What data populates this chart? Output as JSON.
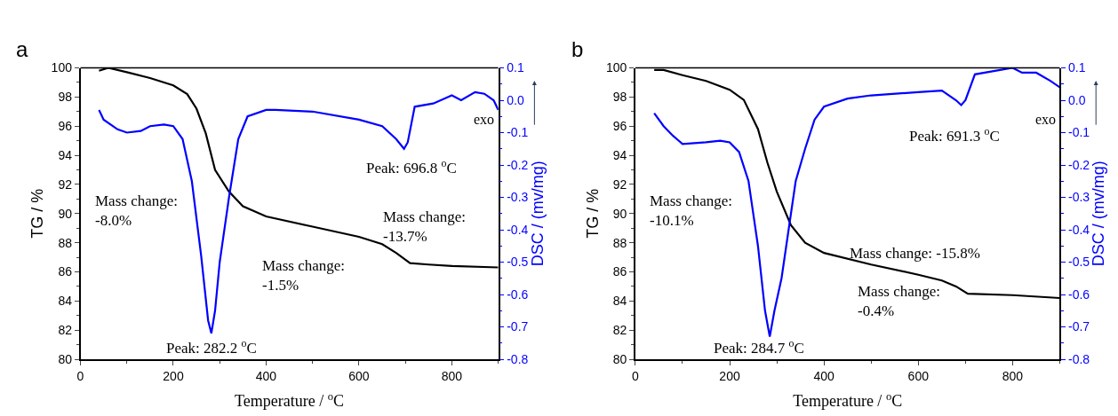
{
  "chart_data": [
    {
      "type": "line",
      "title": "a",
      "xlabel": "Temperature / $^{o}$C",
      "ylabel": "TG / %",
      "y2label": "DSC / (mv/mg)",
      "xlim": [
        0,
        900
      ],
      "xticks": [
        0,
        200,
        400,
        600,
        800
      ],
      "ylim": [
        80,
        100
      ],
      "yticks": [
        80,
        82,
        84,
        86,
        88,
        90,
        92,
        94,
        96,
        98,
        100
      ],
      "y2lim": [
        -0.8,
        0.1
      ],
      "y2ticks": [
        -0.8,
        -0.7,
        -0.6,
        -0.5,
        -0.4,
        -0.3,
        -0.2,
        -0.1,
        {
          "value": 0,
          "label": "0.0"
        },
        0.1
      ],
      "marker": "none",
      "line_style": "solid",
      "series": [
        {
          "color": "#000000",
          "x": [
            40,
            60,
            100,
            150,
            200,
            230,
            250,
            270,
            290,
            320,
            350,
            400,
            500,
            600,
            650,
            680,
            710,
            750,
            800,
            900
          ],
          "values": [
            99.8,
            100,
            99.7,
            99.3,
            98.8,
            98.2,
            97.2,
            95.5,
            93,
            91.5,
            90.5,
            89.8,
            89.1,
            88.4,
            87.9,
            87.3,
            86.6,
            86.5,
            86.4,
            86.3
          ]
        },
        {
          "color": "#0000ff",
          "axis": "y2",
          "x": [
            40,
            50,
            80,
            100,
            130,
            150,
            180,
            200,
            220,
            240,
            260,
            275,
            282,
            290,
            300,
            320,
            340,
            360,
            400,
            420,
            500,
            600,
            650,
            680,
            697,
            705,
            720,
            760,
            800,
            820,
            850,
            870,
            890,
            900
          ],
          "values": [
            -0.03,
            -0.06,
            -0.09,
            -0.1,
            -0.095,
            -0.08,
            -0.075,
            -0.08,
            -0.12,
            -0.25,
            -0.48,
            -0.68,
            -0.72,
            -0.65,
            -0.5,
            -0.3,
            -0.12,
            -0.05,
            -0.03,
            -0.03,
            -0.035,
            -0.06,
            -0.08,
            -0.12,
            -0.15,
            -0.13,
            -0.02,
            -0.01,
            0.015,
            0.0,
            0.025,
            0.02,
            0.0,
            -0.03
          ]
        }
      ],
      "annotations": [
        "Peak: 282.2 $^{o}$C",
        "Peak: 696.8 $^{o}$C",
        "Mass change:\n-8.0%",
        "Mass change:\n-1.5%",
        "Mass change:\n-13.7%",
        "exo"
      ]
    },
    {
      "type": "line",
      "title": "b",
      "xlabel": "Temperature / $^{o}$C",
      "ylabel": "TG / %",
      "y2label": "DSC / (mv/mg)",
      "xlim": [
        0,
        900
      ],
      "xticks": [
        0,
        200,
        400,
        600,
        800
      ],
      "ylim": [
        80,
        100
      ],
      "yticks": [
        80,
        82,
        84,
        86,
        88,
        90,
        92,
        94,
        96,
        98,
        100
      ],
      "y2lim": [
        -0.8,
        0.1
      ],
      "y2ticks": [
        -0.8,
        -0.7,
        -0.6,
        -0.5,
        -0.4,
        -0.3,
        -0.2,
        -0.1,
        {
          "value": 0,
          "label": "0.0"
        },
        0.1
      ],
      "marker": "none",
      "line_style": "solid",
      "series": [
        {
          "color": "#000000",
          "x": [
            40,
            60,
            100,
            150,
            200,
            230,
            260,
            280,
            300,
            330,
            360,
            400,
            500,
            600,
            650,
            680,
            705,
            800,
            900
          ],
          "values": [
            99.85,
            99.85,
            99.5,
            99.1,
            98.5,
            97.8,
            95.8,
            93.5,
            91.5,
            89.2,
            88,
            87.3,
            86.5,
            85.8,
            85.4,
            85.0,
            84.5,
            84.4,
            84.2
          ]
        },
        {
          "color": "#0000ff",
          "axis": "y2",
          "x": [
            40,
            60,
            80,
            100,
            150,
            180,
            200,
            220,
            240,
            260,
            275,
            285,
            295,
            310,
            320,
            330,
            340,
            360,
            380,
            400,
            450,
            500,
            600,
            650,
            680,
            691,
            700,
            720,
            760,
            800,
            820,
            850,
            880,
            900
          ],
          "values": [
            -0.04,
            -0.08,
            -0.11,
            -0.135,
            -0.13,
            -0.125,
            -0.13,
            -0.16,
            -0.25,
            -0.45,
            -0.65,
            -0.73,
            -0.65,
            -0.55,
            -0.45,
            -0.35,
            -0.25,
            -0.15,
            -0.06,
            -0.02,
            0.005,
            0.015,
            0.025,
            0.03,
            0.0,
            -0.015,
            0.0,
            0.08,
            0.09,
            0.1,
            0.085,
            0.085,
            0.06,
            0.04
          ]
        }
      ],
      "annotations": [
        "Peak: 284.7 $^{o}$C",
        "Peak: 691.3 $^{o}$C",
        "Mass change:\n-10.1%",
        "Mass change:\n-0.4%",
        "Mass change: -15.8%",
        "exo"
      ]
    }
  ]
}
